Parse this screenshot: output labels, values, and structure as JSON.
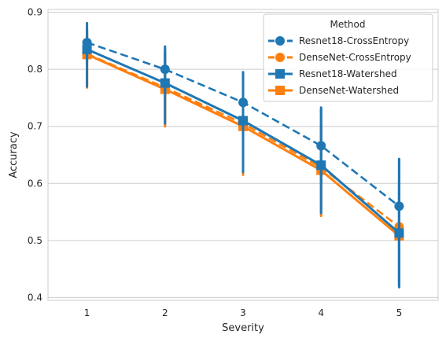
{
  "chart_data": {
    "type": "line",
    "xlabel": "Severity",
    "ylabel": "Accuracy",
    "x": [
      1,
      2,
      3,
      4,
      5
    ],
    "ylim": [
      0.395,
      0.905
    ],
    "yticks": [
      0.4,
      0.5,
      0.6,
      0.7,
      0.8,
      0.9
    ],
    "yticklabels": [
      "0.4",
      "0.5",
      "0.6",
      "0.7",
      "0.8",
      "0.9"
    ],
    "grid": "horizontal",
    "legend": {
      "title": "Method",
      "placement": "top-right"
    },
    "series": [
      {
        "name": "Resnet18-CrossEntropy",
        "color": "#1f77b4",
        "linestyle": "dashed",
        "marker": "circle",
        "values": [
          0.847,
          0.8,
          0.742,
          0.666,
          0.56
        ],
        "ci_low": [
          0.815,
          0.758,
          0.69,
          0.6,
          0.42
        ],
        "ci_high": [
          0.881,
          0.84,
          0.795,
          0.733,
          0.643
        ]
      },
      {
        "name": "DenseNet-CrossEntropy",
        "color": "#ff7f0e",
        "linestyle": "dashed",
        "marker": "circle",
        "values": [
          0.827,
          0.768,
          0.705,
          0.628,
          0.524
        ],
        "ci_low": [
          0.77,
          0.705,
          0.62,
          0.55,
          0.425
        ],
        "ci_high": [
          0.87,
          0.825,
          0.775,
          0.705,
          0.6
        ]
      },
      {
        "name": "Resnet18-Watershed",
        "color": "#1f77b4",
        "linestyle": "solid",
        "marker": "square",
        "values": [
          0.835,
          0.776,
          0.71,
          0.632,
          0.513
        ],
        "ci_low": [
          0.77,
          0.705,
          0.62,
          0.548,
          0.418
        ],
        "ci_high": [
          0.868,
          0.835,
          0.79,
          0.73,
          0.64
        ]
      },
      {
        "name": "DenseNet-Watershed",
        "color": "#ff7f0e",
        "linestyle": "solid",
        "marker": "square",
        "values": [
          0.826,
          0.765,
          0.7,
          0.623,
          0.508
        ],
        "ci_low": [
          0.768,
          0.7,
          0.615,
          0.543,
          0.422
        ],
        "ci_high": [
          0.865,
          0.83,
          0.775,
          0.7,
          0.595
        ]
      }
    ]
  }
}
